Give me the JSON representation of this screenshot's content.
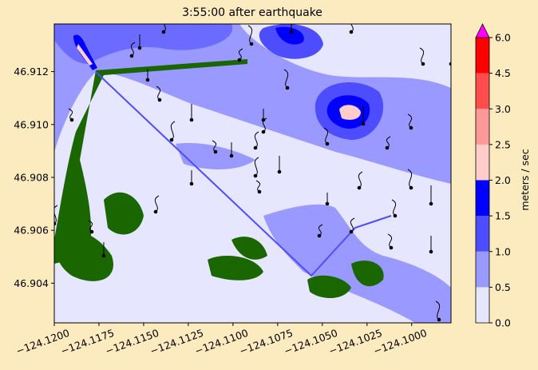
{
  "chart_data": {
    "type": "contour",
    "title": "3:55:00 after earthquake",
    "xlim": [
      -124.12,
      -124.0978
    ],
    "xticks": [
      {
        "value": -124.12,
        "label": "−124.1200"
      },
      {
        "value": -124.1175,
        "label": "−124.1175"
      },
      {
        "value": -124.115,
        "label": "−124.1150"
      },
      {
        "value": -124.1125,
        "label": "−124.1125"
      },
      {
        "value": -124.11,
        "label": "−124.1100"
      },
      {
        "value": -124.1075,
        "label": "−124.1075"
      },
      {
        "value": -124.105,
        "label": "−124.1050"
      },
      {
        "value": -124.1025,
        "label": "−124.1025"
      },
      {
        "value": -124.1,
        "label": "−124.1000"
      }
    ],
    "ylim": [
      46.9025,
      46.9138
    ],
    "yticks": [
      46.904,
      46.906,
      46.908,
      {
        "value": 46.91,
        "label": "46.910"
      },
      46.912
    ],
    "colorbar": {
      "label": "meters / sec",
      "levels": [
        0,
        0.5,
        1,
        1.5,
        2,
        2.5,
        3,
        4.5,
        6
      ],
      "ticks": [
        {
          "value": 0,
          "label": "0.0"
        },
        0.5,
        {
          "value": 1,
          "label": "1.0"
        },
        1.5,
        {
          "value": 2,
          "label": "2.0"
        },
        2.5,
        {
          "value": 3,
          "label": "3.0"
        },
        4.5,
        {
          "value": 6,
          "label": "6.0"
        }
      ],
      "colors": [
        "#e6e6ff",
        "#9999ff",
        "#4d4dff",
        "#0000ff",
        "#ffcccc",
        "#ff9999",
        "#ff4d4d",
        "#ff0000"
      ],
      "extend_color": "#ff00ff"
    }
  }
}
